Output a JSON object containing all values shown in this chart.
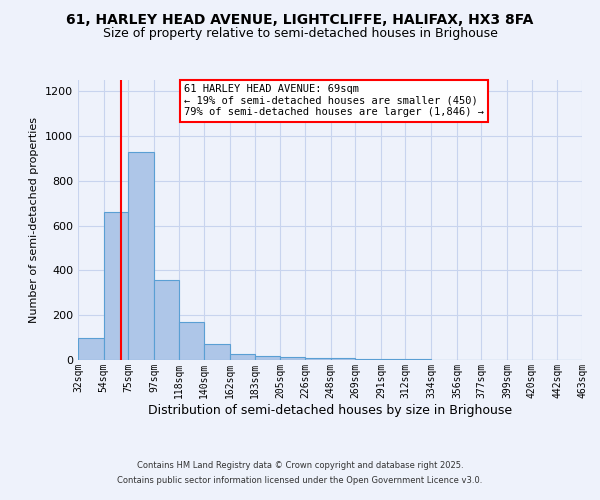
{
  "title1": "61, HARLEY HEAD AVENUE, LIGHTCLIFFE, HALIFAX, HX3 8FA",
  "title2": "Size of property relative to semi-detached houses in Brighouse",
  "xlabel": "Distribution of semi-detached houses by size in Brighouse",
  "ylabel": "Number of semi-detached properties",
  "bar_color": "#aec6e8",
  "bar_edge_color": "#5a9fd4",
  "property_line_x": 69,
  "annotation_title": "61 HARLEY HEAD AVENUE: 69sqm",
  "annotation_line1": "← 19% of semi-detached houses are smaller (450)",
  "annotation_line2": "79% of semi-detached houses are larger (1,846) →",
  "bin_edges": [
    32,
    54,
    75,
    97,
    118,
    140,
    162,
    183,
    205,
    226,
    248,
    269,
    291,
    312,
    334,
    356,
    377,
    399,
    420,
    442,
    463
  ],
  "bar_heights": [
    100,
    660,
    930,
    355,
    170,
    70,
    25,
    18,
    15,
    10,
    10,
    5,
    4,
    3,
    2,
    1,
    1,
    0,
    0,
    0
  ],
  "ylim": [
    0,
    1250
  ],
  "yticks": [
    0,
    200,
    400,
    600,
    800,
    1000,
    1200
  ],
  "background_color": "#eef2fb",
  "footer1": "Contains HM Land Registry data © Crown copyright and database right 2025.",
  "footer2": "Contains public sector information licensed under the Open Government Licence v3.0.",
  "grid_color": "#c8d4ee"
}
